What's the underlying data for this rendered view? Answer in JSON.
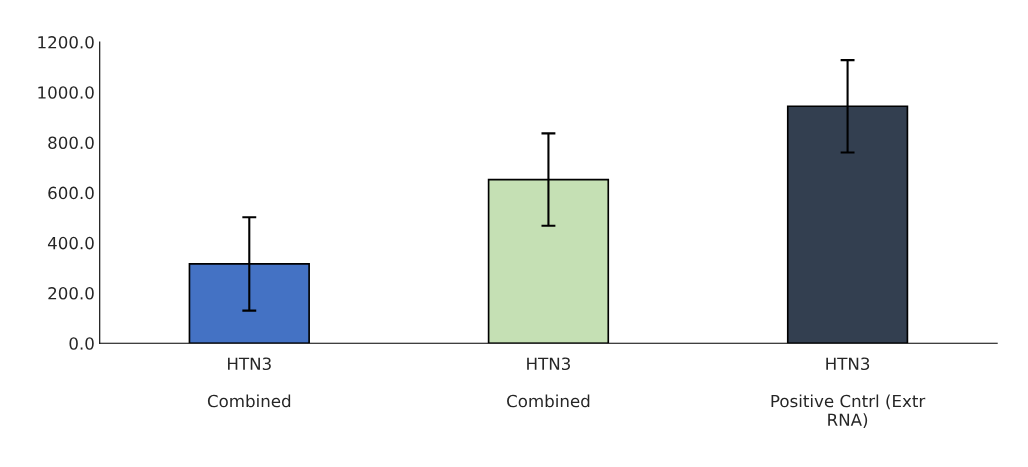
{
  "chart_data": {
    "type": "bar",
    "categories": [
      "HTN3\n\nCombined",
      "HTN3\n\nCombined",
      "HTN3\n\nPositive Cntrl (Extr\nRNA)"
    ],
    "values": [
      316,
      652,
      944
    ],
    "errors": [
      186,
      184,
      184
    ],
    "colors": [
      "#4472c4",
      "#c5e0b4",
      "#333f50"
    ],
    "ylim": [
      0,
      1200
    ],
    "yticks": [
      {
        "value": 0,
        "label": "0.0"
      },
      {
        "value": 200,
        "label": "200.0"
      },
      {
        "value": 400,
        "label": "400.0"
      },
      {
        "value": 600,
        "label": "600.0"
      },
      {
        "value": 800,
        "label": "800.0"
      },
      {
        "value": 1000,
        "label": "1000.0"
      },
      {
        "value": 1200,
        "label": "1200.0"
      }
    ],
    "grid": false,
    "legend": false
  }
}
